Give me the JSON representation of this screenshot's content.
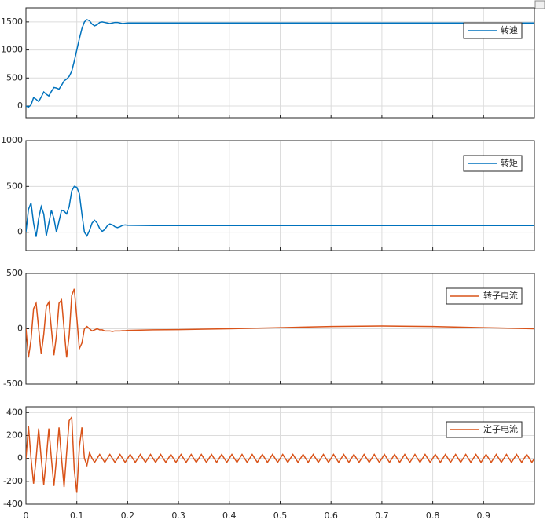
{
  "chart_data": [
    {
      "type": "line",
      "x": [
        0,
        0.005,
        0.01,
        0.015,
        0.02,
        0.025,
        0.03,
        0.035,
        0.04,
        0.045,
        0.05,
        0.055,
        0.06,
        0.065,
        0.07,
        0.075,
        0.08,
        0.085,
        0.09,
        0.095,
        0.1,
        0.105,
        0.11,
        0.115,
        0.12,
        0.125,
        0.13,
        0.135,
        0.14,
        0.145,
        0.15,
        0.155,
        0.16,
        0.165,
        0.17,
        0.175,
        0.18,
        0.185,
        0.19,
        0.195,
        0.2,
        0.25,
        0.3,
        0.4,
        0.5,
        0.6,
        0.7,
        0.8,
        0.9,
        1.0
      ],
      "series": [
        {
          "name": "转速",
          "color": "#0072bd",
          "values": [
            0,
            -20,
            20,
            150,
            120,
            80,
            160,
            250,
            210,
            180,
            260,
            330,
            320,
            300,
            370,
            450,
            480,
            530,
            620,
            800,
            1000,
            1200,
            1380,
            1500,
            1540,
            1520,
            1460,
            1430,
            1450,
            1490,
            1500,
            1490,
            1480,
            1470,
            1480,
            1490,
            1490,
            1480,
            1470,
            1475,
            1480,
            1480,
            1480,
            1480,
            1480,
            1480,
            1480,
            1480,
            1480,
            1480
          ]
        }
      ],
      "xlim": [
        0,
        1
      ],
      "xticks": [
        0,
        0.1,
        0.2,
        0.3,
        0.4,
        0.5,
        0.6,
        0.7,
        0.8,
        0.9
      ],
      "ylim": [
        -210,
        1750
      ],
      "yticks": [
        0,
        500,
        1000,
        1500
      ],
      "grid": true,
      "legend": "upper right"
    },
    {
      "type": "line",
      "x": [
        0,
        0.005,
        0.01,
        0.015,
        0.02,
        0.025,
        0.03,
        0.035,
        0.04,
        0.045,
        0.05,
        0.055,
        0.06,
        0.065,
        0.07,
        0.075,
        0.08,
        0.085,
        0.09,
        0.095,
        0.1,
        0.105,
        0.11,
        0.115,
        0.12,
        0.125,
        0.13,
        0.135,
        0.14,
        0.145,
        0.15,
        0.155,
        0.16,
        0.165,
        0.17,
        0.175,
        0.18,
        0.185,
        0.19,
        0.195,
        0.2,
        0.25,
        0.3,
        0.4,
        0.5,
        0.6,
        0.7,
        0.8,
        0.9,
        1.0
      ],
      "series": [
        {
          "name": "转矩",
          "color": "#0072bd",
          "values": [
            0,
            250,
            320,
            100,
            -50,
            150,
            280,
            200,
            -40,
            100,
            240,
            150,
            0,
            120,
            240,
            230,
            200,
            280,
            450,
            500,
            490,
            420,
            200,
            0,
            -40,
            20,
            100,
            130,
            100,
            40,
            10,
            30,
            70,
            90,
            80,
            60,
            50,
            60,
            75,
            80,
            75,
            72,
            72,
            72,
            72,
            72,
            72,
            72,
            72,
            72
          ]
        }
      ],
      "xlim": [
        0,
        1
      ],
      "xticks": [
        0,
        0.1,
        0.2,
        0.3,
        0.4,
        0.5,
        0.6,
        0.7,
        0.8,
        0.9
      ],
      "ylim": [
        -200,
        1000
      ],
      "yticks": [
        0,
        500,
        1000
      ],
      "grid": true,
      "legend": "upper right"
    },
    {
      "type": "line",
      "x": [
        0,
        0.005,
        0.01,
        0.015,
        0.02,
        0.025,
        0.03,
        0.035,
        0.04,
        0.045,
        0.05,
        0.055,
        0.06,
        0.065,
        0.07,
        0.075,
        0.08,
        0.085,
        0.09,
        0.095,
        0.1,
        0.105,
        0.11,
        0.115,
        0.12,
        0.125,
        0.13,
        0.135,
        0.14,
        0.145,
        0.15,
        0.155,
        0.16,
        0.165,
        0.17,
        0.175,
        0.18,
        0.185,
        0.19,
        0.195,
        0.2,
        0.25,
        0.3,
        0.4,
        0.5,
        0.6,
        0.7,
        0.8,
        0.9,
        1.0
      ],
      "series": [
        {
          "name": "转子电流",
          "color": "#d95319",
          "values": [
            0,
            -260,
            -100,
            180,
            230,
            0,
            -230,
            -50,
            200,
            240,
            0,
            -240,
            -60,
            230,
            260,
            0,
            -260,
            -60,
            300,
            360,
            100,
            -180,
            -130,
            0,
            20,
            0,
            -20,
            -10,
            0,
            -10,
            -10,
            -20,
            -20,
            -20,
            -25,
            -20,
            -20,
            -20,
            -18,
            -18,
            -15,
            -10,
            -8,
            0,
            10,
            20,
            25,
            20,
            10,
            0
          ]
        }
      ],
      "xlim": [
        0,
        1
      ],
      "xticks": [
        0,
        0.1,
        0.2,
        0.3,
        0.4,
        0.5,
        0.6,
        0.7,
        0.8,
        0.9
      ],
      "ylim": [
        -500,
        500
      ],
      "yticks": [
        -500,
        0,
        500
      ],
      "grid": true,
      "legend": "upper right"
    },
    {
      "type": "line",
      "x": [
        0,
        0.005,
        0.01,
        0.015,
        0.02,
        0.025,
        0.03,
        0.035,
        0.04,
        0.045,
        0.05,
        0.055,
        0.06,
        0.065,
        0.07,
        0.075,
        0.08,
        0.085,
        0.09,
        0.095,
        0.1,
        0.105,
        0.11,
        0.115,
        0.12,
        0.125,
        0.13,
        0.135,
        0.14,
        0.145,
        0.15,
        0.155,
        0.16,
        0.165,
        0.17,
        0.175,
        0.18,
        0.185,
        0.19,
        0.195,
        0.2,
        0.205,
        0.21,
        0.215,
        0.22,
        0.225,
        0.23,
        0.235,
        0.24,
        0.245,
        0.25,
        0.255,
        0.26,
        0.265,
        0.27,
        0.275,
        0.28,
        0.285,
        0.29,
        0.295,
        0.3,
        0.305,
        0.31,
        0.315,
        0.32,
        0.325,
        0.33,
        0.335,
        0.34,
        0.345,
        0.35,
        0.355,
        0.36,
        0.365,
        0.37,
        0.375,
        0.38,
        0.385,
        0.39,
        0.395,
        0.4,
        0.405,
        0.41,
        0.415,
        0.42,
        0.425,
        0.43,
        0.435,
        0.44,
        0.445,
        0.45,
        0.455,
        0.46,
        0.465,
        0.47,
        0.475,
        0.48,
        0.485,
        0.49,
        0.495,
        0.5,
        0.505,
        0.51,
        0.515,
        0.52,
        0.525,
        0.53,
        0.535,
        0.54,
        0.545,
        0.55,
        0.555,
        0.56,
        0.565,
        0.57,
        0.575,
        0.58,
        0.585,
        0.59,
        0.595,
        0.6,
        0.605,
        0.61,
        0.615,
        0.62,
        0.625,
        0.63,
        0.635,
        0.64,
        0.645,
        0.65,
        0.655,
        0.66,
        0.665,
        0.67,
        0.675,
        0.68,
        0.685,
        0.69,
        0.695,
        0.7,
        0.705,
        0.71,
        0.715,
        0.72,
        0.725,
        0.73,
        0.735,
        0.74,
        0.745,
        0.75,
        0.755,
        0.76,
        0.765,
        0.77,
        0.775,
        0.78,
        0.785,
        0.79,
        0.795,
        0.8,
        0.805,
        0.81,
        0.815,
        0.82,
        0.825,
        0.83,
        0.835,
        0.84,
        0.845,
        0.85,
        0.855,
        0.86,
        0.865,
        0.87,
        0.875,
        0.88,
        0.885,
        0.89,
        0.895,
        0.9,
        0.905,
        0.91,
        0.915,
        0.92,
        0.925,
        0.93,
        0.935,
        0.94,
        0.945,
        0.95,
        0.955,
        0.96,
        0.965,
        0.97,
        0.975,
        0.98,
        0.985,
        0.99,
        0.995,
        1.0
      ],
      "series": [
        {
          "name": "定子电流",
          "color": "#d95319",
          "values": [
            0,
            280,
            0,
            -220,
            0,
            260,
            0,
            -230,
            0,
            260,
            0,
            -240,
            0,
            270,
            0,
            -250,
            50,
            330,
            360,
            -100,
            -300,
            100,
            270,
            0,
            -60,
            50,
            0,
            -35,
            0,
            35,
            0,
            -35,
            0,
            35,
            0,
            -35,
            0,
            35,
            0,
            -35,
            0,
            35,
            0,
            -35,
            0,
            35,
            0,
            -35,
            0,
            35,
            0,
            -35,
            0,
            35,
            0,
            -35,
            0,
            35,
            0,
            -35,
            0,
            35,
            0,
            -35,
            0,
            35,
            0,
            -35,
            0,
            35,
            0,
            -35,
            0,
            35,
            0,
            -35,
            0,
            35,
            0,
            -35,
            0,
            35,
            0,
            -35,
            0,
            35,
            0,
            -35,
            0,
            35,
            0,
            -35,
            0,
            35,
            0,
            -35,
            0,
            35,
            0,
            -35,
            0,
            35,
            0,
            -35,
            0,
            35,
            0,
            -35,
            0,
            35,
            0,
            -35,
            0,
            35,
            0,
            -35,
            0,
            35,
            0,
            -35,
            0,
            35,
            0,
            -35,
            0,
            35,
            0,
            -35,
            0,
            35,
            0,
            -35,
            0,
            35,
            0,
            -35,
            0,
            35,
            0,
            -35,
            0,
            35,
            0,
            -35,
            0,
            35,
            0,
            -35,
            0,
            35,
            0,
            -35,
            0,
            35,
            0,
            -35,
            0,
            35,
            0,
            -35,
            0,
            35,
            0,
            -35,
            0,
            35,
            0,
            -35,
            0,
            35,
            0,
            -35,
            0,
            35,
            0,
            -35,
            0,
            35,
            0,
            -35,
            0,
            35,
            0,
            -35,
            0,
            35,
            0,
            -35,
            0,
            35,
            0,
            -35,
            0,
            35,
            0,
            -35,
            0,
            35,
            0,
            -35,
            0
          ]
        }
      ],
      "xlim": [
        0,
        1
      ],
      "xticks": [
        0,
        0.1,
        0.2,
        0.3,
        0.4,
        0.5,
        0.6,
        0.7,
        0.8,
        0.9
      ],
      "ylim": [
        -400,
        450
      ],
      "yticks": [
        -400,
        -200,
        0,
        200,
        400
      ],
      "grid": true,
      "legend": "upper right"
    }
  ]
}
